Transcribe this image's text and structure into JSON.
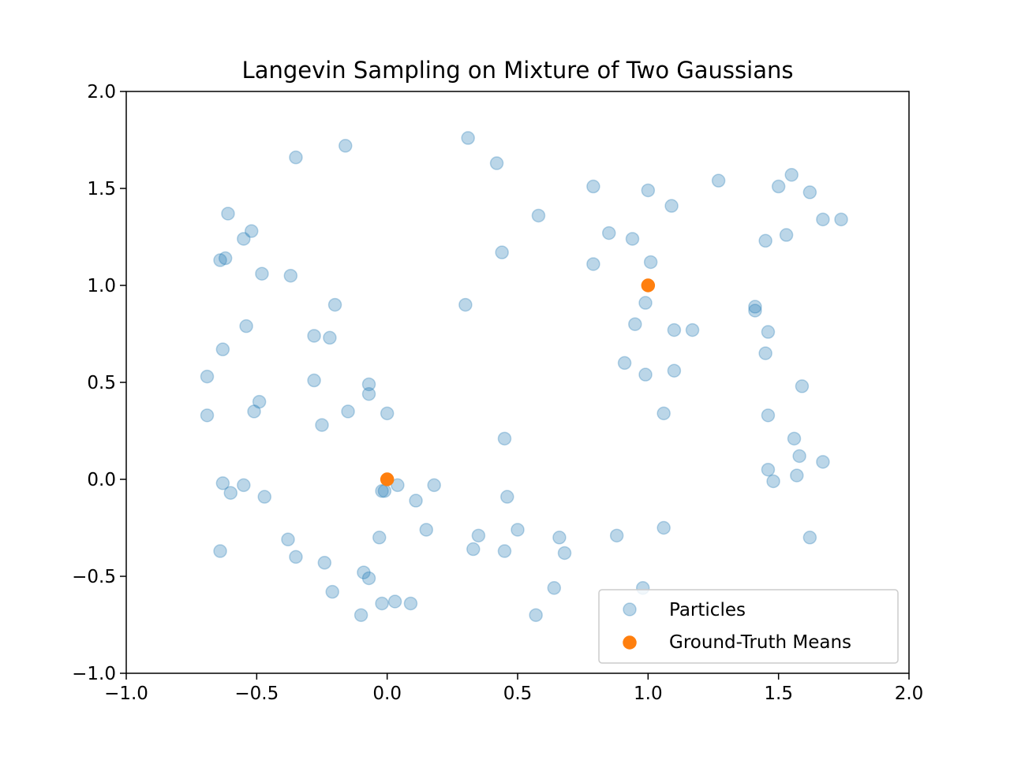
{
  "chart_data": {
    "type": "scatter",
    "title": "Langevin Sampling on Mixture of Two Gaussians",
    "xlabel": "",
    "ylabel": "",
    "xlim": [
      -1.0,
      2.0
    ],
    "ylim": [
      -1.0,
      2.0
    ],
    "xticks": [
      "−1.0",
      "−0.5",
      "0.0",
      "0.5",
      "1.0",
      "1.5",
      "2.0"
    ],
    "xtick_values": [
      -1.0,
      -0.5,
      0.0,
      0.5,
      1.0,
      1.5,
      2.0
    ],
    "yticks": [
      "−1.0",
      "−0.5",
      "0.0",
      "0.5",
      "1.0",
      "1.5",
      "2.0"
    ],
    "ytick_values": [
      -1.0,
      -0.5,
      0.0,
      0.5,
      1.0,
      1.5,
      2.0
    ],
    "grid": false,
    "legend_position": "lower right",
    "series": [
      {
        "name": "Particles",
        "color": "#1f77b4",
        "alpha": 0.3,
        "points": [
          [
            -0.35,
            1.66
          ],
          [
            -0.16,
            1.72
          ],
          [
            0.31,
            1.76
          ],
          [
            0.42,
            1.63
          ],
          [
            -0.61,
            1.37
          ],
          [
            -0.52,
            1.28
          ],
          [
            -0.55,
            1.24
          ],
          [
            -0.64,
            1.13
          ],
          [
            -0.62,
            1.14
          ],
          [
            -0.48,
            1.06
          ],
          [
            -0.37,
            1.05
          ],
          [
            -0.2,
            0.9
          ],
          [
            -0.54,
            0.79
          ],
          [
            -0.28,
            0.74
          ],
          [
            -0.22,
            0.73
          ],
          [
            -0.63,
            0.67
          ],
          [
            -0.69,
            0.53
          ],
          [
            -0.28,
            0.51
          ],
          [
            -0.07,
            0.49
          ],
          [
            -0.07,
            0.44
          ],
          [
            -0.49,
            0.4
          ],
          [
            -0.51,
            0.35
          ],
          [
            -0.15,
            0.35
          ],
          [
            0.0,
            0.34
          ],
          [
            -0.69,
            0.33
          ],
          [
            -0.25,
            0.28
          ],
          [
            0.45,
            0.21
          ],
          [
            -0.63,
            -0.02
          ],
          [
            -0.55,
            -0.03
          ],
          [
            -0.6,
            -0.07
          ],
          [
            -0.47,
            -0.09
          ],
          [
            -0.02,
            -0.06
          ],
          [
            -0.01,
            -0.06
          ],
          [
            0.04,
            -0.03
          ],
          [
            0.18,
            -0.03
          ],
          [
            0.11,
            -0.11
          ],
          [
            0.46,
            -0.09
          ],
          [
            0.58,
            1.36
          ],
          [
            0.44,
            1.17
          ],
          [
            0.3,
            0.9
          ],
          [
            0.79,
            1.51
          ],
          [
            1.0,
            1.49
          ],
          [
            1.09,
            1.41
          ],
          [
            0.85,
            1.27
          ],
          [
            0.94,
            1.24
          ],
          [
            0.79,
            1.11
          ],
          [
            1.01,
            1.12
          ],
          [
            0.99,
            0.91
          ],
          [
            0.95,
            0.8
          ],
          [
            1.1,
            0.77
          ],
          [
            1.17,
            0.77
          ],
          [
            0.91,
            0.6
          ],
          [
            0.99,
            0.54
          ],
          [
            1.1,
            0.56
          ],
          [
            1.06,
            0.34
          ],
          [
            1.27,
            1.54
          ],
          [
            1.55,
            1.57
          ],
          [
            1.5,
            1.51
          ],
          [
            1.62,
            1.48
          ],
          [
            1.67,
            1.34
          ],
          [
            1.74,
            1.34
          ],
          [
            1.45,
            1.23
          ],
          [
            1.53,
            1.26
          ],
          [
            1.41,
            0.89
          ],
          [
            1.41,
            0.87
          ],
          [
            1.46,
            0.76
          ],
          [
            1.45,
            0.65
          ],
          [
            1.59,
            0.48
          ],
          [
            1.46,
            0.33
          ],
          [
            1.56,
            0.21
          ],
          [
            1.58,
            0.12
          ],
          [
            1.67,
            0.09
          ],
          [
            1.46,
            0.05
          ],
          [
            1.48,
            -0.01
          ],
          [
            1.57,
            0.02
          ],
          [
            1.62,
            -0.3
          ],
          [
            1.06,
            -0.25
          ],
          [
            0.88,
            -0.29
          ],
          [
            0.66,
            -0.3
          ],
          [
            0.68,
            -0.38
          ],
          [
            0.5,
            -0.26
          ],
          [
            0.35,
            -0.29
          ],
          [
            0.33,
            -0.36
          ],
          [
            0.45,
            -0.37
          ],
          [
            0.15,
            -0.26
          ],
          [
            -0.03,
            -0.3
          ],
          [
            -0.64,
            -0.37
          ],
          [
            -0.38,
            -0.31
          ],
          [
            -0.35,
            -0.4
          ],
          [
            -0.24,
            -0.43
          ],
          [
            -0.09,
            -0.48
          ],
          [
            -0.07,
            -0.51
          ],
          [
            -0.21,
            -0.58
          ],
          [
            -0.02,
            -0.64
          ],
          [
            0.03,
            -0.63
          ],
          [
            0.09,
            -0.64
          ],
          [
            -0.1,
            -0.7
          ],
          [
            0.64,
            -0.56
          ],
          [
            0.57,
            -0.7
          ],
          [
            0.98,
            -0.56
          ]
        ]
      },
      {
        "name": "Ground-Truth Means",
        "color": "#ff7f0e",
        "alpha": 1.0,
        "points": [
          [
            0.0,
            0.0
          ],
          [
            1.0,
            1.0
          ]
        ]
      }
    ]
  }
}
